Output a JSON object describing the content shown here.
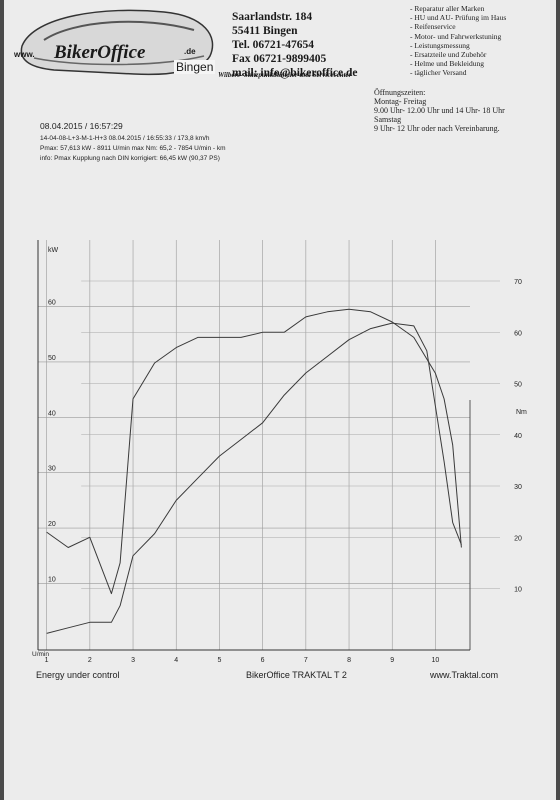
{
  "header": {
    "logo": {
      "www": "www.",
      "brand": "BikerOffice",
      "tld": ".de",
      "city": "Bingen"
    },
    "address": [
      "Saarlandstr. 184",
      "55411 Bingen",
      "Tel. 06721-47654",
      "Fax 06721-9899405",
      "mail: info@bikeroffice.de"
    ],
    "tagline": "Wilbers- Stützpunkthändler und Servicecenter",
    "services": [
      "- Reparatur aller Marken",
      "- HU und AU- Prüfung im Haus",
      "- Reifenservice",
      "- Motor- und Fahrwerkstuning",
      "- Leistungsmessung",
      "- Ersatzteile und Zubehör",
      "- Helme und Bekleidung",
      "- täglicher Versand"
    ],
    "hours": [
      "Öffnungszeiten:",
      "Montag- Freitag",
      "9.00 Uhr- 12.00 Uhr und 14 Uhr- 18 Uhr",
      "Samstag",
      "9 Uhr- 12 Uhr oder nach Vereinbarung."
    ]
  },
  "meta": {
    "datetime": "08.04.2015  /  16:57:29",
    "run": "14-04-08-L+3-M-1-H+3     08.04.2015   /  16:55:33  /  173,8 km/h",
    "pmax": "Pmax: 57,613 kW - 8911 U/min    max Nm: 65,2 - 7854 U/min     - km",
    "info": "info: Pmax Kupplung nach DIN korrigiert: 66,45 kW (90,37 PS)"
  },
  "footer": {
    "left": "Energy  under control",
    "center": "BikerOffice TRAKTAL  T 2",
    "right": "www.Traktal.com"
  },
  "chart_data": {
    "type": "line",
    "xlabel": "U/min",
    "x_ticks": [
      "1",
      "2",
      "3",
      "4",
      "5",
      "6",
      "7",
      "8",
      "9",
      "10"
    ],
    "xlim": [
      0.8,
      10.8
    ],
    "y_left": {
      "label": "kW",
      "ticks": [
        "10",
        "20",
        "30",
        "40",
        "50",
        "60"
      ],
      "lim": [
        -2,
        72
      ]
    },
    "y_right": {
      "label": "Nm",
      "ticks": [
        "10",
        "20",
        "30",
        "40",
        "50",
        "60",
        "70"
      ],
      "lim": [
        -2,
        78
      ]
    },
    "grid": true,
    "series": [
      {
        "axis": "left",
        "color": "#3a3a3a",
        "x": [
          1.0,
          1.5,
          2.0,
          2.5,
          2.7,
          3.0,
          3.5,
          4.0,
          4.5,
          5.0,
          5.5,
          6.0,
          6.5,
          7.0,
          7.5,
          8.0,
          8.5,
          9.0,
          9.5,
          9.8,
          10.0,
          10.2,
          10.4,
          10.6
        ],
        "values": [
          1,
          2,
          3,
          3,
          6,
          15,
          19,
          25,
          29,
          33,
          36,
          39,
          44,
          48,
          51,
          54,
          56,
          57,
          56.5,
          52,
          42,
          32,
          21,
          17
        ]
      },
      {
        "axis": "right",
        "color": "#3a3a3a",
        "x": [
          1.0,
          1.5,
          2.0,
          2.5,
          2.7,
          3.0,
          3.5,
          4.0,
          4.5,
          5.0,
          5.5,
          6.0,
          6.5,
          7.0,
          7.5,
          8.0,
          8.5,
          9.0,
          9.5,
          10.0,
          10.2,
          10.4,
          10.6
        ],
        "values": [
          21,
          18,
          20,
          9,
          15,
          47,
          54,
          57,
          59,
          59,
          59,
          60,
          60,
          63,
          64,
          64.5,
          64,
          62,
          59,
          52,
          47,
          38,
          18
        ]
      }
    ]
  }
}
